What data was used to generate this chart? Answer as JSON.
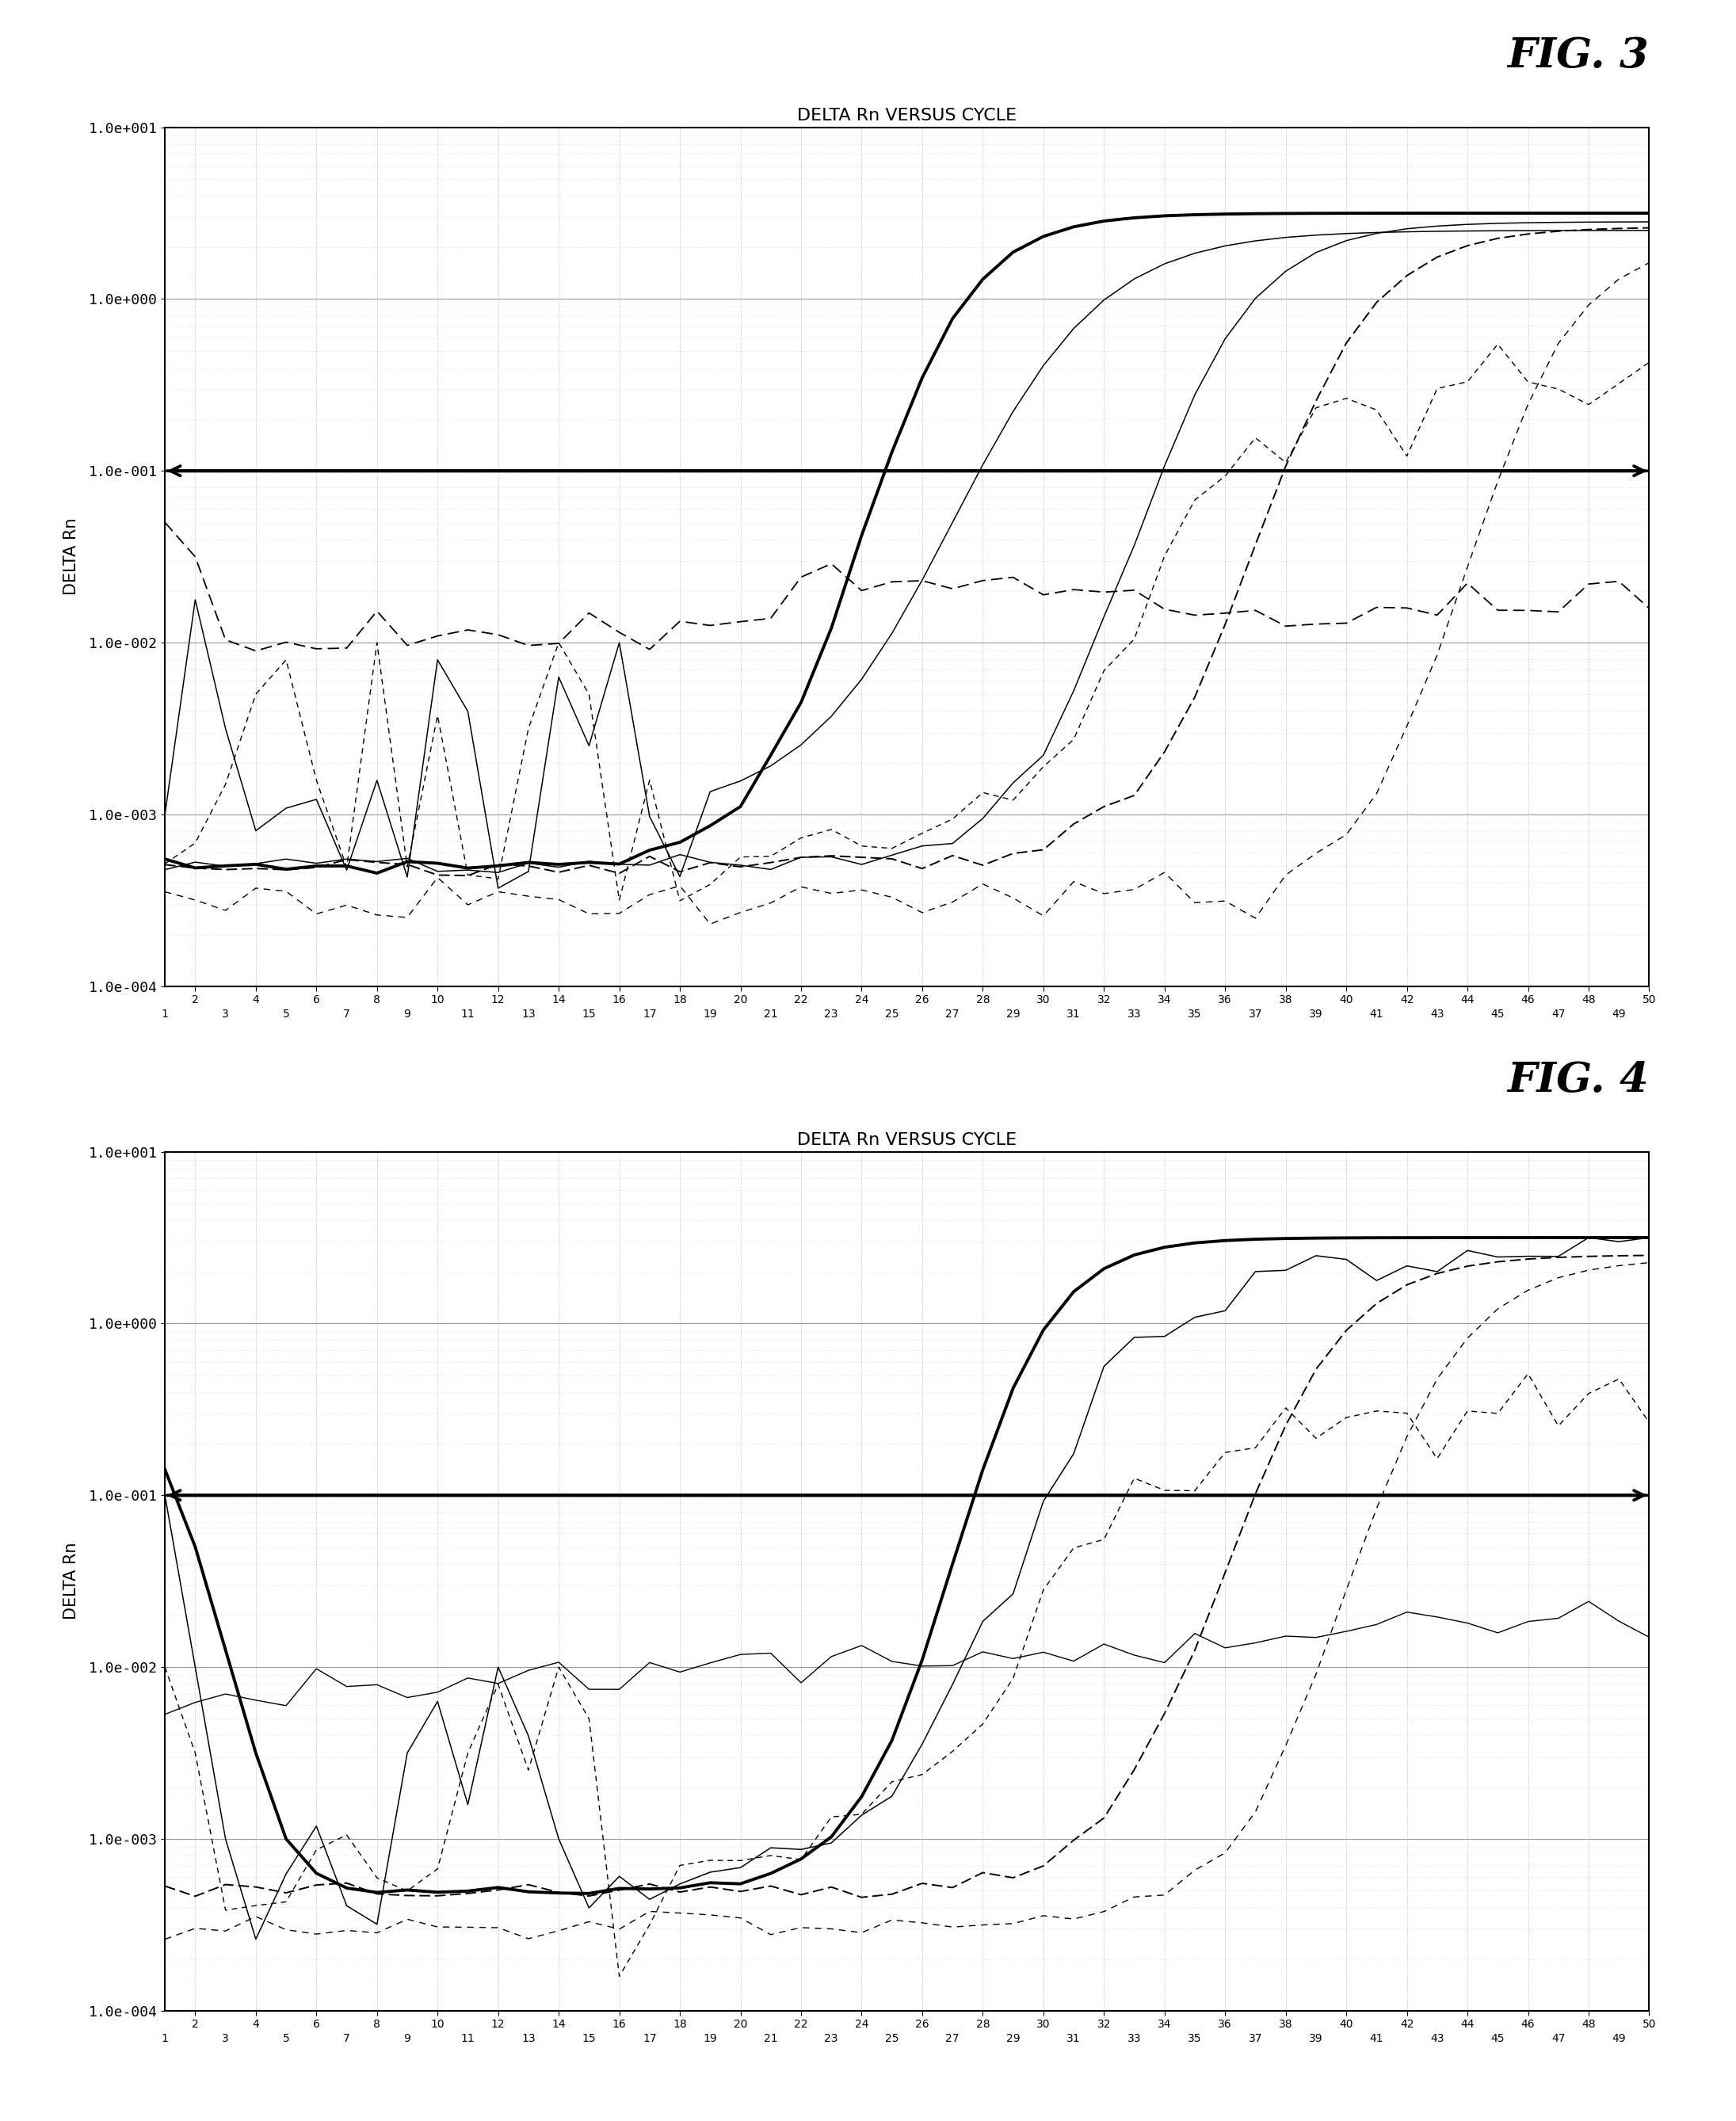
{
  "fig3_title": "DELTA Rn VERSUS CYCLE",
  "fig4_title": "DELTA Rn VERSUS CYCLE",
  "fig3_label": "FIG. 3",
  "fig4_label": "FIG. 4",
  "ylabel": "DELTA Rn",
  "yticks": [
    0.0001,
    0.001,
    0.01,
    0.1,
    1.0,
    10.0
  ],
  "ytick_labels": [
    "1.0e-004",
    "1.0e-003",
    "1.0e-002",
    "1.0e-001",
    "1.0e+000",
    "1.0e+001"
  ],
  "xlim": [
    1,
    50
  ],
  "ylim": [
    0.0001,
    10.0
  ],
  "threshold_y": 0.1,
  "background_color": "#ffffff"
}
